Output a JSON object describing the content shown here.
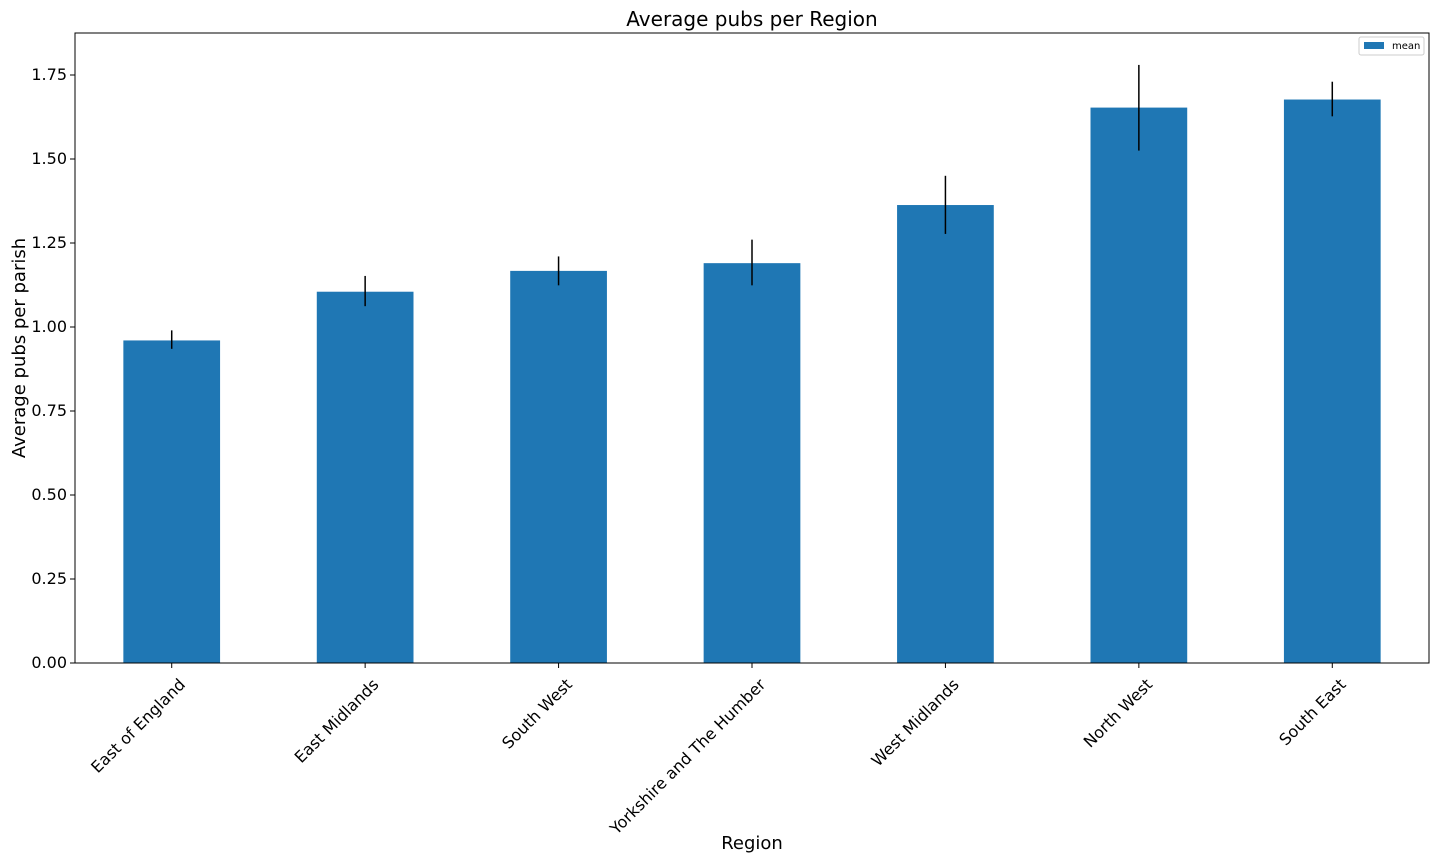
{
  "chart_data": {
    "type": "bar",
    "title": "Average pubs per Region",
    "xlabel": "Region",
    "ylabel": "Average pubs per parish",
    "categories": [
      "East of England",
      "East Midlands",
      "South West",
      "Yorkshire and The Humber",
      "West Midlands",
      "North West",
      "South East"
    ],
    "series": [
      {
        "name": "mean",
        "values": [
          0.96,
          1.105,
          1.167,
          1.19,
          1.363,
          1.653,
          1.677
        ],
        "error_low": [
          0.935,
          1.062,
          1.124,
          1.124,
          1.277,
          1.525,
          1.627
        ],
        "error_high": [
          0.99,
          1.152,
          1.21,
          1.26,
          1.45,
          1.78,
          1.73
        ],
        "color": "#1f77b4"
      }
    ],
    "ylim": [
      0,
      1.875
    ],
    "yticks": [
      0.0,
      0.25,
      0.5,
      0.75,
      1.0,
      1.25,
      1.5,
      1.75
    ],
    "ytick_labels": [
      "0.00",
      "0.25",
      "0.50",
      "0.75",
      "1.00",
      "1.25",
      "1.50",
      "1.75"
    ],
    "grid": false,
    "legend_position": "top-right"
  }
}
